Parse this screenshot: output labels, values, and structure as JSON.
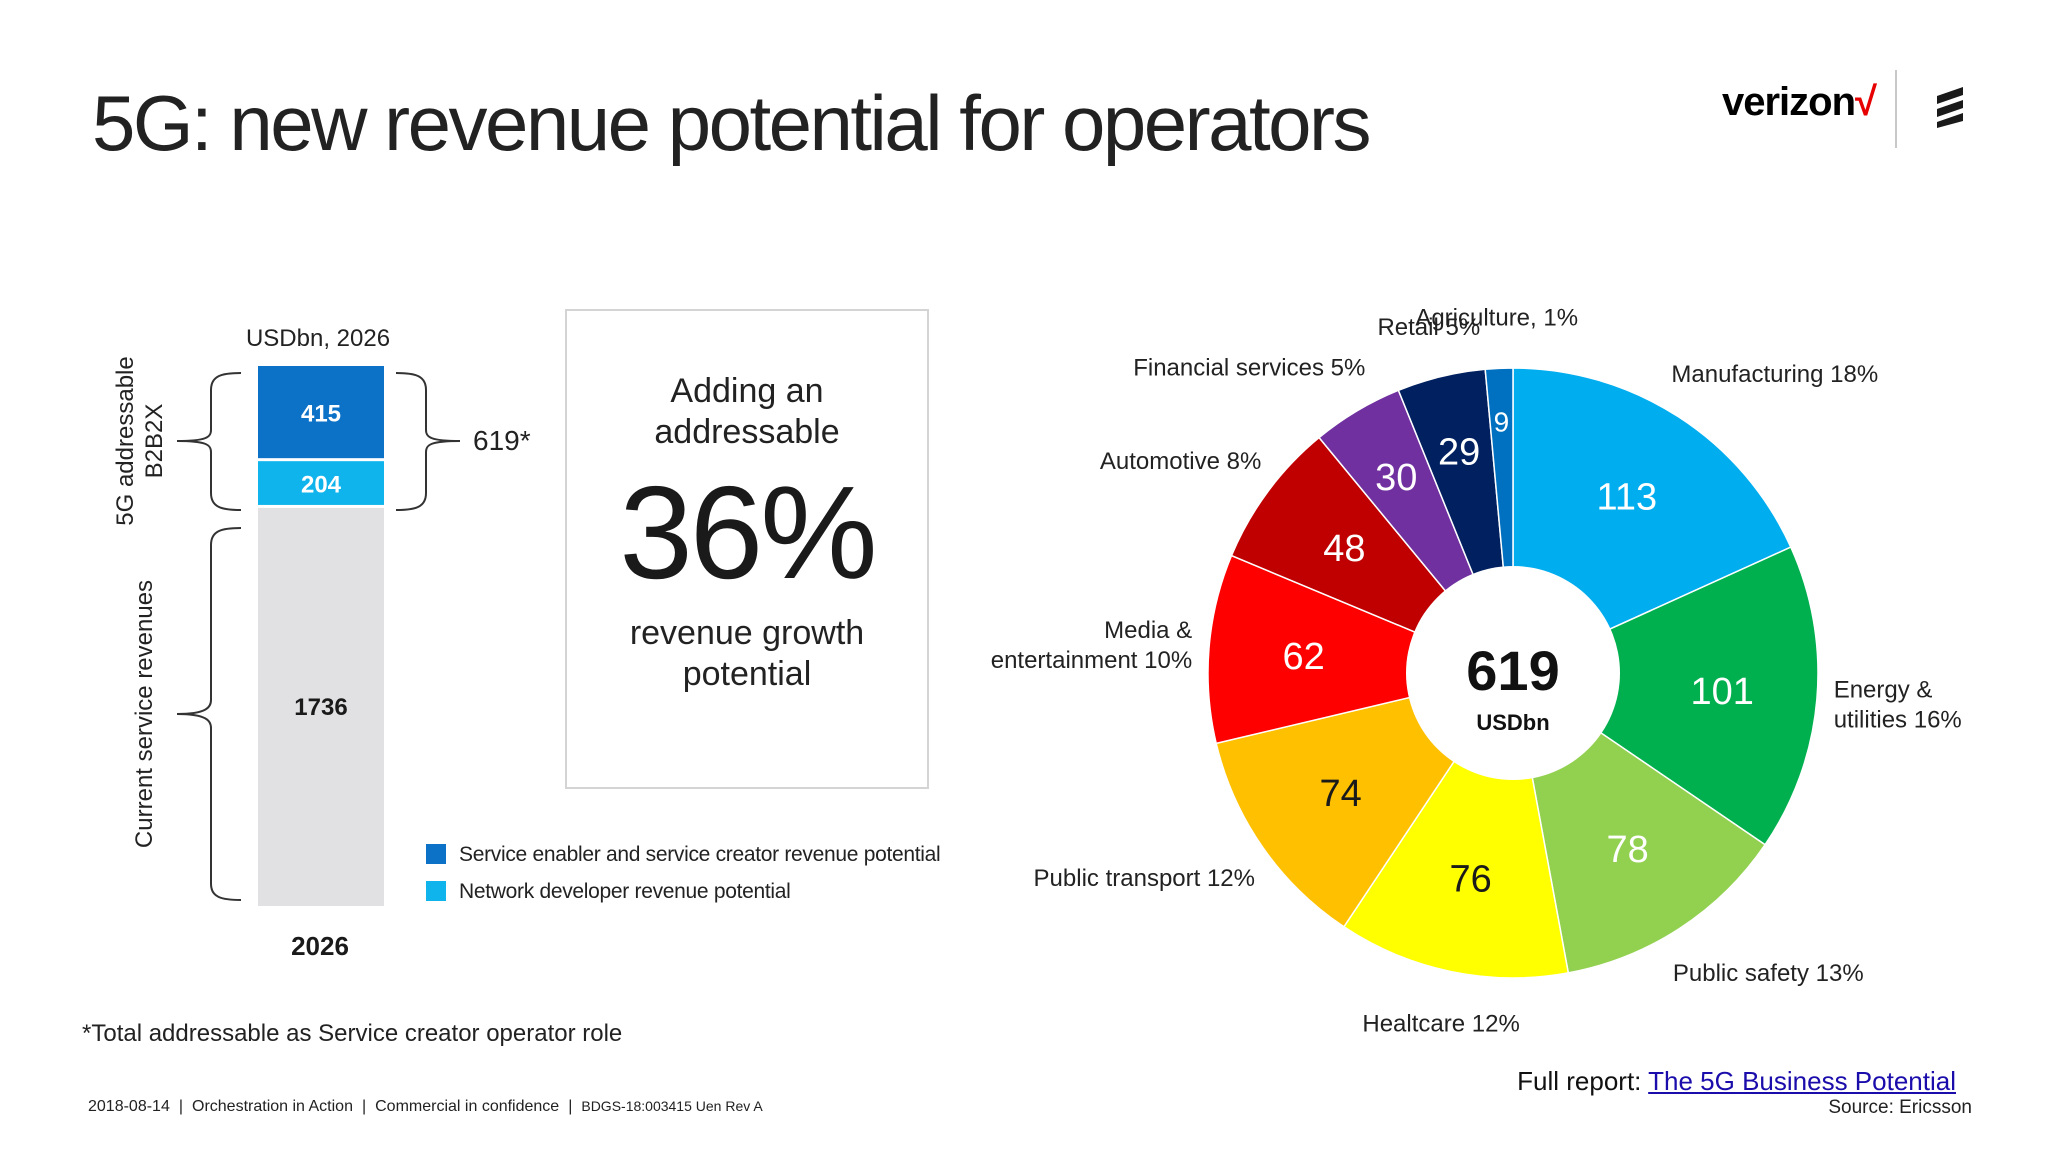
{
  "title": "5G: new revenue potential for operators",
  "logo": {
    "verizon_text": "verizon",
    "verizon_check": "√",
    "ericsson_icon": "ericsson-logo-icon"
  },
  "callout": {
    "line1a": "Adding an",
    "line1b": "addressable",
    "percent": "36%",
    "line2a": "revenue growth",
    "line2b": "potential"
  },
  "footnote": "*Total addressable as Service creator operator role",
  "footer": {
    "date": "2018-08-14",
    "item1": "Orchestration in Action",
    "item2": "Commercial in confidence",
    "code": "BDGS-18:003415 Uen Rev A",
    "separator": "|"
  },
  "report": {
    "prefix": "Full report: ",
    "link_text": "The 5G Business Potential"
  },
  "source": "Source: Ericsson",
  "colors": {
    "service_enabler": "#0c72c7",
    "network_developer": "#0fb4ec",
    "current": "#e1e1e3"
  },
  "chart_data": [
    {
      "type": "bar",
      "stacked": true,
      "title": "USDbn, 2026",
      "categories": [
        "2026"
      ],
      "series": [
        {
          "name": "Current service revenues",
          "values": [
            1736
          ],
          "color": "#e1e1e3"
        },
        {
          "name": "Network developer revenue potential",
          "values": [
            204
          ],
          "color": "#0fb4ec"
        },
        {
          "name": "Service enabler and service creator revenue potential",
          "values": [
            415
          ],
          "color": "#0c72c7"
        }
      ],
      "total_addressable_label": "619*",
      "bracket_labels": {
        "addressable_line1": "5G addressable",
        "addressable_line2": "B2B2X",
        "current": "Current service revenues"
      },
      "legend": [
        {
          "label": "Service enabler and service creator revenue potential",
          "color": "#0c72c7"
        },
        {
          "label": "Network developer revenue potential",
          "color": "#0fb4ec"
        }
      ]
    },
    {
      "type": "pie",
      "donut": true,
      "center_value": "619",
      "center_unit": "USDbn",
      "slices": [
        {
          "value": 113,
          "value_label": "113",
          "label_lines": [
            "Manufacturing 18%"
          ],
          "color": "#00adef",
          "text_color": "#ffffff"
        },
        {
          "value": 101,
          "value_label": "101",
          "label_lines": [
            "Energy &",
            "utilities 16%"
          ],
          "color": "#00b04f",
          "text_color": "#ffffff"
        },
        {
          "value": 78,
          "value_label": "78",
          "label_lines": [
            "Public safety 13%"
          ],
          "color": "#92d050",
          "text_color": "#ffffff"
        },
        {
          "value": 76,
          "value_label": "76",
          "label_lines": [
            "Healtcare 12%"
          ],
          "color": "#ffff00",
          "text_color": "#1a1a1a"
        },
        {
          "value": 74,
          "value_label": "74",
          "label_lines": [
            "Public transport 12%"
          ],
          "color": "#ffc000",
          "text_color": "#1a1a1a"
        },
        {
          "value": 62,
          "value_label": "62",
          "label_lines": [
            "Media &",
            "entertainment 10%"
          ],
          "color": "#ff0000",
          "text_color": "#ffffff"
        },
        {
          "value": 48,
          "value_label": "48",
          "label_lines": [
            "Automotive 8%"
          ],
          "color": "#c00000",
          "text_color": "#ffffff"
        },
        {
          "value": 30,
          "value_label": "30",
          "label_lines": [
            "Financial services 5%"
          ],
          "color": "#7030a0",
          "text_color": "#ffffff"
        },
        {
          "value": 29,
          "value_label": "29",
          "label_lines": [
            "Retail 5%"
          ],
          "color": "#002060",
          "text_color": "#ffffff"
        },
        {
          "value": 9,
          "value_label": "9",
          "label_lines": [
            "Agriculture, 1%"
          ],
          "color": "#0070c0",
          "text_color": "#ffffff"
        }
      ]
    }
  ]
}
